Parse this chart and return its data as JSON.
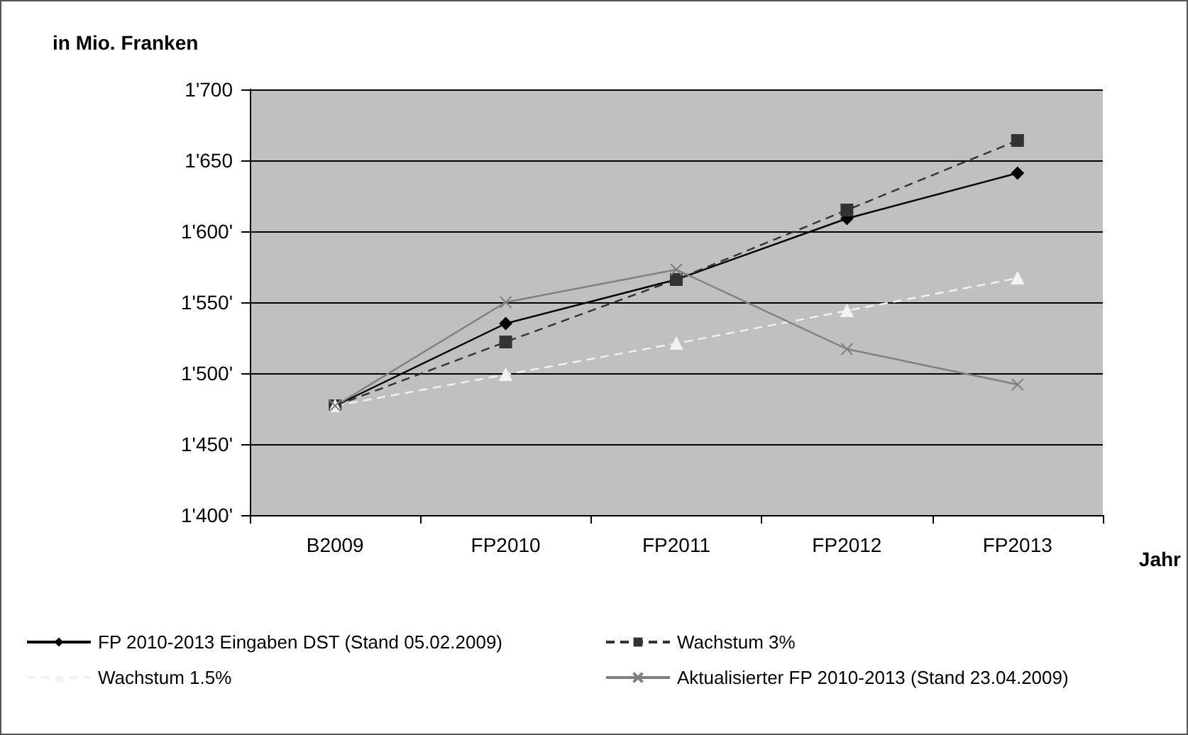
{
  "chart_data": {
    "type": "line",
    "ylabel": "in Mio. Franken",
    "xlabel": "Jahr",
    "categories": [
      "B2009",
      "FP2010",
      "FP2011",
      "FP2012",
      "FP2013"
    ],
    "series": [
      {
        "name": "FP 2010-2013 Eingaben DST (Stand 05.02.2009)",
        "color": "#000000",
        "marker": "diamond",
        "line_style": "solid",
        "values": [
          1477,
          1535,
          1566,
          1609,
          1641
        ]
      },
      {
        "name": "Wachstum 3%",
        "color": "#333333",
        "marker": "square",
        "line_style": "dashed",
        "values": [
          1477,
          1522,
          1566,
          1615,
          1664
        ]
      },
      {
        "name": "Wachstum 1.5%",
        "color": "#f2f2f2",
        "marker": "triangle",
        "line_style": "dashed",
        "values": [
          1477,
          1499,
          1521,
          1544,
          1567
        ]
      },
      {
        "name": "Aktualisierter FP 2010-2013 (Stand 23.04.2009)",
        "color": "#808080",
        "marker": "cross",
        "line_style": "solid",
        "values": [
          1477,
          1550,
          1573,
          1517,
          1492
        ]
      }
    ],
    "ylim": [
      1400,
      1700
    ],
    "yticks": [
      {
        "value": 1400,
        "label": "1'400'"
      },
      {
        "value": 1450,
        "label": "1'450'"
      },
      {
        "value": 1500,
        "label": "1'500'"
      },
      {
        "value": 1550,
        "label": "1'550'"
      },
      {
        "value": 1600,
        "label": "1'600'"
      },
      {
        "value": 1650,
        "label": "1'650"
      },
      {
        "value": 1700,
        "label": "1'700"
      }
    ],
    "grid": "y",
    "legend": "bottom"
  }
}
